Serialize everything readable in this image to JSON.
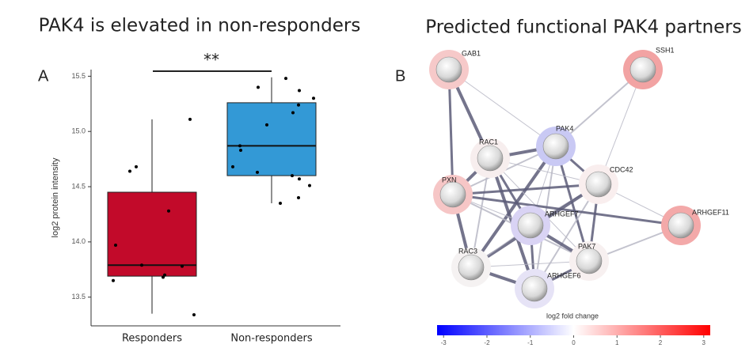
{
  "chart_data": [
    {
      "type": "box",
      "title": "PAK4 is elevated in non-responders",
      "panel": "A",
      "ylabel": "log2 protein intensity",
      "categories": [
        "Responders",
        "Non-responders"
      ],
      "colors": [
        "#c20a2a",
        "#3399d6"
      ],
      "boxes": [
        {
          "low": 13.35,
          "q1": 13.69,
          "median": 13.79,
          "q3": 14.45,
          "high": 15.11
        },
        {
          "low": 14.35,
          "q1": 14.6,
          "median": 14.87,
          "q3": 15.26,
          "high": 15.49
        }
      ],
      "points": [
        [
          15.11,
          14.68,
          14.64,
          14.28,
          13.97,
          13.79,
          13.7,
          13.68,
          13.78,
          13.65,
          13.34
        ],
        [
          15.4,
          15.48,
          15.37,
          15.3,
          15.24,
          15.17,
          15.06,
          14.87,
          14.83,
          14.68,
          14.63,
          14.6,
          14.57,
          14.51,
          14.4,
          14.35
        ]
      ],
      "significance": "**",
      "ylim": [
        13.24,
        15.56
      ],
      "yticks": [
        13.5,
        {
          "value": 14,
          "label": "14.0"
        },
        14.5,
        {
          "value": 15,
          "label": "15.0"
        },
        15.5
      ]
    },
    {
      "type": "network",
      "title": "Predicted functional PAK4 partners",
      "panel": "B",
      "nodes": [
        {
          "label": "GAB1",
          "halo": "#f6c9c9"
        },
        {
          "label": "SSH1",
          "halo": "#f2a3a3"
        },
        {
          "label": "PAK4",
          "halo": "#c9c9f4"
        },
        {
          "label": "RAC1",
          "halo": "#f7eeee"
        },
        {
          "label": "CDC42",
          "halo": "#f9eeee"
        },
        {
          "label": "PXN",
          "halo": "#f6c6c6"
        },
        {
          "label": "ARHGEF7",
          "halo": "#d9d3f4"
        },
        {
          "label": "ARHGEF11",
          "halo": "#f3a9a9"
        },
        {
          "label": "PAK7",
          "halo": "#f7f0f0"
        },
        {
          "label": "RAC3",
          "halo": "#f5f2f2"
        },
        {
          "label": "ARHGEF6",
          "halo": "#e6e3f6"
        }
      ],
      "edges": [
        [
          "GAB1",
          "PAK4"
        ],
        [
          "GAB1",
          "RAC1"
        ],
        [
          "GAB1",
          "PXN"
        ],
        [
          "SSH1",
          "PAK4"
        ],
        [
          "SSH1",
          "CDC42"
        ],
        [
          "PAK4",
          "RAC1"
        ],
        [
          "PAK4",
          "CDC42"
        ],
        [
          "PAK4",
          "PXN"
        ],
        [
          "PAK4",
          "ARHGEF7"
        ],
        [
          "PAK4",
          "RAC3"
        ],
        [
          "PAK4",
          "PAK7"
        ],
        [
          "PAK4",
          "ARHGEF6"
        ],
        [
          "RAC1",
          "CDC42"
        ],
        [
          "RAC1",
          "PXN"
        ],
        [
          "RAC1",
          "ARHGEF7"
        ],
        [
          "RAC1",
          "RAC3"
        ],
        [
          "RAC1",
          "PAK7"
        ],
        [
          "RAC1",
          "ARHGEF6"
        ],
        [
          "CDC42",
          "PXN"
        ],
        [
          "CDC42",
          "ARHGEF7"
        ],
        [
          "CDC42",
          "ARHGEF11"
        ],
        [
          "CDC42",
          "RAC3"
        ],
        [
          "CDC42",
          "PAK7"
        ],
        [
          "CDC42",
          "ARHGEF6"
        ],
        [
          "PXN",
          "ARHGEF7"
        ],
        [
          "PXN",
          "RAC3"
        ],
        [
          "PXN",
          "ARHGEF11"
        ],
        [
          "PXN",
          "PAK7"
        ],
        [
          "ARHGEF7",
          "RAC3"
        ],
        [
          "ARHGEF7",
          "PAK7"
        ],
        [
          "ARHGEF7",
          "ARHGEF6"
        ],
        [
          "ARHGEF11",
          "PAK7"
        ],
        [
          "RAC3",
          "PAK7"
        ],
        [
          "RAC3",
          "ARHGEF6"
        ],
        [
          "PAK7",
          "ARHGEF6"
        ]
      ],
      "colorbar_label": "log2 fold change",
      "colorbar_colors": [
        "#0000ff",
        "#ffffff",
        "#ff0000"
      ],
      "xlim": [
        -3.15,
        3.15
      ],
      "xticks": [
        -3,
        -2,
        -1,
        0,
        1,
        2,
        3
      ]
    }
  ]
}
